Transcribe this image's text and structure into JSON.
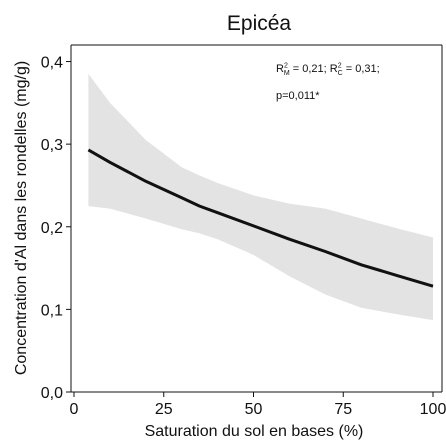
{
  "chart_data": {
    "type": "line",
    "title": "Epicéa",
    "xlabel": "Saturation du sol en bases (%)",
    "ylabel": "Concentration d'Al dans les rondelles (mg/g)",
    "xlim": [
      0,
      100
    ],
    "ylim": [
      0,
      0.42
    ],
    "x_ticks": [
      0,
      25,
      50,
      75,
      100
    ],
    "x_tick_labels": [
      "0",
      "25",
      "50",
      "75",
      "100"
    ],
    "y_ticks": [
      0.0,
      0.1,
      0.2,
      0.3,
      0.4
    ],
    "y_tick_labels": [
      "0,0",
      "0,1",
      "0,2",
      "0,3",
      "0,4"
    ],
    "series": [
      {
        "x": [
          4,
          10,
          20,
          30,
          35,
          40,
          50,
          60,
          70,
          80,
          90,
          100
        ],
        "fit": [
          0.293,
          0.278,
          0.255,
          0.235,
          0.225,
          0.217,
          0.201,
          0.185,
          0.17,
          0.154,
          0.141,
          0.128
        ],
        "lower": [
          0.225,
          0.222,
          0.21,
          0.197,
          0.192,
          0.185,
          0.166,
          0.14,
          0.118,
          0.102,
          0.094,
          0.087
        ],
        "upper": [
          0.385,
          0.35,
          0.305,
          0.272,
          0.262,
          0.253,
          0.238,
          0.228,
          0.222,
          0.21,
          0.198,
          0.187
        ]
      }
    ],
    "annotation": {
      "rm_prefix": "R",
      "rm_sub": "M",
      "rm_sup": "2",
      "rm_value": " = 0,21; ",
      "rc_prefix": "R",
      "rc_sub": "C",
      "rc_sup": "2",
      "rc_value": " = 0,31;",
      "p_text": "p=0,011*"
    },
    "colors": {
      "line": "#111111",
      "band": "#e3e3e3",
      "axis": "#111111"
    },
    "grid": false,
    "legend": "none"
  }
}
